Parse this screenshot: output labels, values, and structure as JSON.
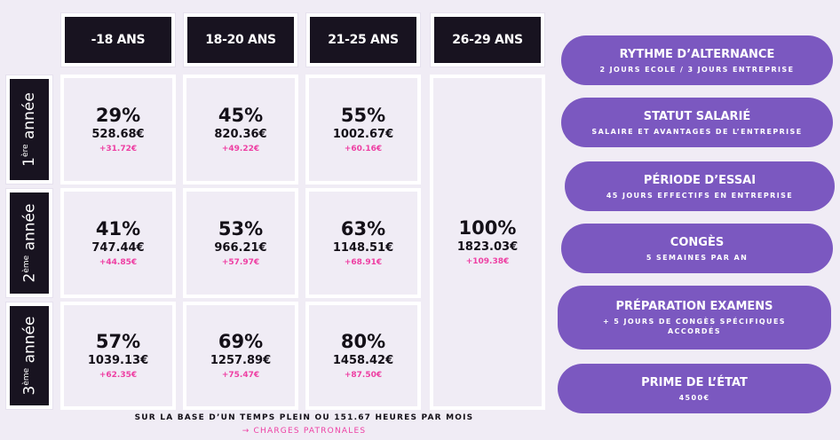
{
  "headers": [
    "-18 ANS",
    "18-20 ANS",
    "21-25 ANS",
    "26-29 ANS"
  ],
  "rows": [
    {
      "num": "1",
      "sup": "ère",
      "label": "année"
    },
    {
      "num": "2",
      "sup": "ème",
      "label": "année"
    },
    {
      "num": "3",
      "sup": "ème",
      "label": "année"
    }
  ],
  "cells": [
    [
      {
        "pct": "29%",
        "amount": "528.68€",
        "extra": "+31.72€"
      },
      {
        "pct": "45%",
        "amount": "820.36€",
        "extra": "+49.22€"
      },
      {
        "pct": "55%",
        "amount": "1002.67€",
        "extra": "+60.16€"
      }
    ],
    [
      {
        "pct": "41%",
        "amount": "747.44€",
        "extra": "+44.85€"
      },
      {
        "pct": "53%",
        "amount": "966.21€",
        "extra": "+57.97€"
      },
      {
        "pct": "63%",
        "amount": "1148.51€",
        "extra": "+68.91€"
      }
    ],
    [
      {
        "pct": "57%",
        "amount": "1039.13€",
        "extra": "+62.35€"
      },
      {
        "pct": "69%",
        "amount": "1257.89€",
        "extra": "+75.47€"
      },
      {
        "pct": "80%",
        "amount": "1458.42€",
        "extra": "+87.50€"
      }
    ]
  ],
  "full": {
    "pct": "100%",
    "amount": "1823.03€",
    "extra": "+109.38€"
  },
  "pills": [
    {
      "title": "RYTHME  D’ALTERNANCE",
      "sub": "2 JOURS ECOLE / 3 JOURS ENTREPRISE"
    },
    {
      "title": "STATUT SALARIÉ",
      "sub": "SALAIRE ET AVANTAGES DE L’ENTREPRISE"
    },
    {
      "title": "PÉRIODE D’ESSAI",
      "sub": "45 JOURS EFFECTIFS EN ENTREPRISE"
    },
    {
      "title": "CONGÈS",
      "sub": "5 SEMAINES PAR AN"
    },
    {
      "title": "PRÉPARATION EXAMENS",
      "sub": "+ 5 JOURS DE CONGÈS SPÉCIFIQUES ACCORDÉS"
    },
    {
      "title": "PRIME DE L’ÉTAT",
      "sub": "4500€"
    }
  ],
  "footer": {
    "basis": "SUR LA BASE D’UN TEMPS PLEIN OU 151.67 HEURES PAR MOIS",
    "charges": "→ CHARGES PATRONALES"
  },
  "colors": {
    "dark": "#181320",
    "accent": "#7b58c0",
    "pink": "#ee3fa3",
    "bg": "#f0ecf5"
  }
}
